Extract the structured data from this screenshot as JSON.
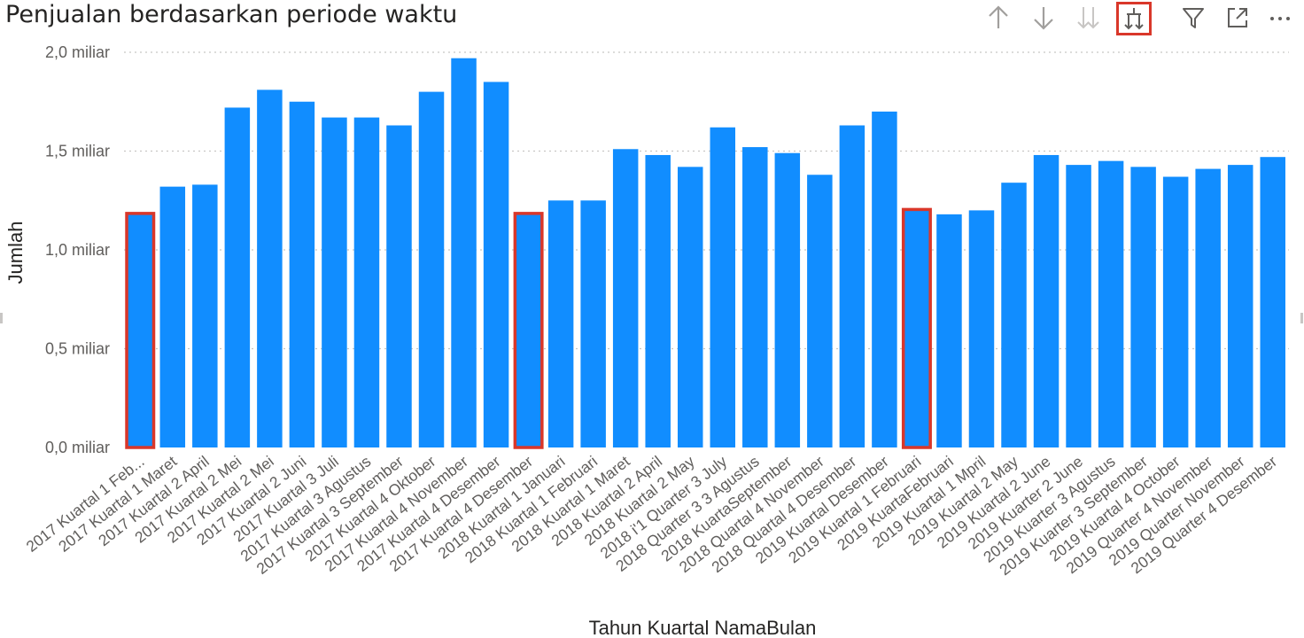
{
  "visual": {
    "title": "Penjualan berdasarkan periode waktu",
    "toolbar": [
      {
        "name": "drill-up-icon",
        "active": false
      },
      {
        "name": "drill-down-icon",
        "active": false
      },
      {
        "name": "next-level-icon",
        "active": false
      },
      {
        "name": "expand-hierarchy-icon",
        "active": true
      },
      {
        "name": "filter-icon",
        "active": false
      },
      {
        "name": "focus-mode-icon",
        "active": false
      },
      {
        "name": "more-options-icon",
        "active": false
      }
    ]
  },
  "chart_data": {
    "type": "bar",
    "title": "Penjualan berdasarkan periode waktu",
    "xlabel": "Tahun Kuartal NamaBulan",
    "ylabel": "Jumlah",
    "ylim": [
      0,
      2.0
    ],
    "yticks": [
      {
        "value": 0.0,
        "label": "0,0 miliar"
      },
      {
        "value": 0.5,
        "label": "0,5 miliar"
      },
      {
        "value": 1.0,
        "label": "1,0 miliar"
      },
      {
        "value": 1.5,
        "label": "1,5 miliar"
      },
      {
        "value": 2.0,
        "label": "2,0 miliar"
      }
    ],
    "unit": "miliar",
    "grid": true,
    "bar_color": "#118dff",
    "highlight_color": "#d9372a",
    "highlighted_indices": [
      0,
      12,
      24
    ],
    "categories": [
      "2017 Kuartal 1 Feb...",
      "2017 Kuartal 1 Maret",
      "2017 Kuartal 2 April",
      "2017 Kuartal 2 Mei",
      "2017 Kuartal 2 Mei",
      "2017 Kuartal 2 Juni",
      "2017 Kuartal 3 Juli",
      "2017 Kuartal 3 Agustus",
      "2017 Kuartal 3 September",
      "2017 Kuartal 4 Oktober",
      "2017 Kuartal 4 November",
      "2017 Kuartal 4 Desember",
      "2017 Kuartal 4 Desember",
      "2018 Kuartal 1 Januari",
      "2018 Kuartal 1 Februari",
      "2018 Kuartal 1 Maret",
      "2018 Kuartal 2 April",
      "2018 Kuartal 2 May",
      "2018 i'1 Quarter 3 July",
      "2018 Quarter 3 3 Agustus",
      "2018 KuartaSeptember",
      "2018 Quartal 4 November",
      "2018 Quartal 4 Desember",
      "2019 Kuartal Desember",
      "2019 Kuartal 1 Februari",
      "2019 KuartaFebruari",
      "2019 Kuartal 1 Mpril",
      "2019 Kuartal 2 May",
      "2019 Kuartal 2 June",
      "2019 Kuarter 2 June",
      "2019 Kuarter 3 Agustus",
      "2019 Kuarter 3 September",
      "2019 Kuartal 4 October",
      "2019 Quarter 4 November",
      "2019 Quarter November",
      "2019 Quarter 4 Desember"
    ],
    "values": [
      1.18,
      1.32,
      1.33,
      1.72,
      1.81,
      1.75,
      1.67,
      1.67,
      1.63,
      1.8,
      1.97,
      1.85,
      1.18,
      1.25,
      1.25,
      1.51,
      1.48,
      1.42,
      1.62,
      1.52,
      1.49,
      1.38,
      1.63,
      1.7,
      1.2,
      1.18,
      1.2,
      1.34,
      1.48,
      1.43,
      1.45,
      1.42,
      1.37,
      1.41,
      1.43,
      1.47
    ]
  }
}
